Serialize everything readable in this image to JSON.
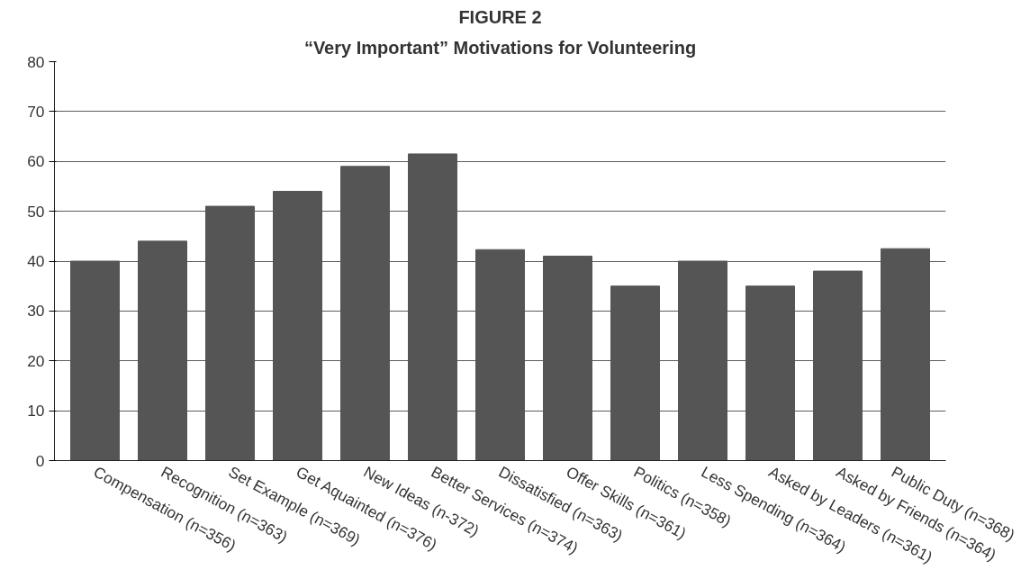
{
  "chart_data": {
    "type": "bar",
    "title": "FIGURE 2",
    "subtitle": "“Very Important” Motivations for Volunteering",
    "categories": [
      "Compensation (n=356)",
      "Recognition (n=363)",
      "Set Example (n=369)",
      "Get Aquainted (n=376)",
      "New Ideas (n-372)",
      "Better Services (n=374)",
      "Dissatisfied (n=363)",
      "Offer Skills (n=361)",
      "Politics (n=358)",
      "Less Spending (n=364)",
      "Asked by Leaders (n=361)",
      "Asked by Friends (n=364)",
      "Public Duty (n=368)"
    ],
    "values": [
      40,
      44,
      51,
      54,
      59,
      61.5,
      42.3,
      41,
      35,
      40,
      35,
      38,
      42.5
    ],
    "color": "#555555",
    "ylim": [
      0,
      80
    ],
    "yticks": [
      0,
      10,
      20,
      30,
      40,
      50,
      60,
      70,
      80
    ],
    "grid": "y"
  }
}
